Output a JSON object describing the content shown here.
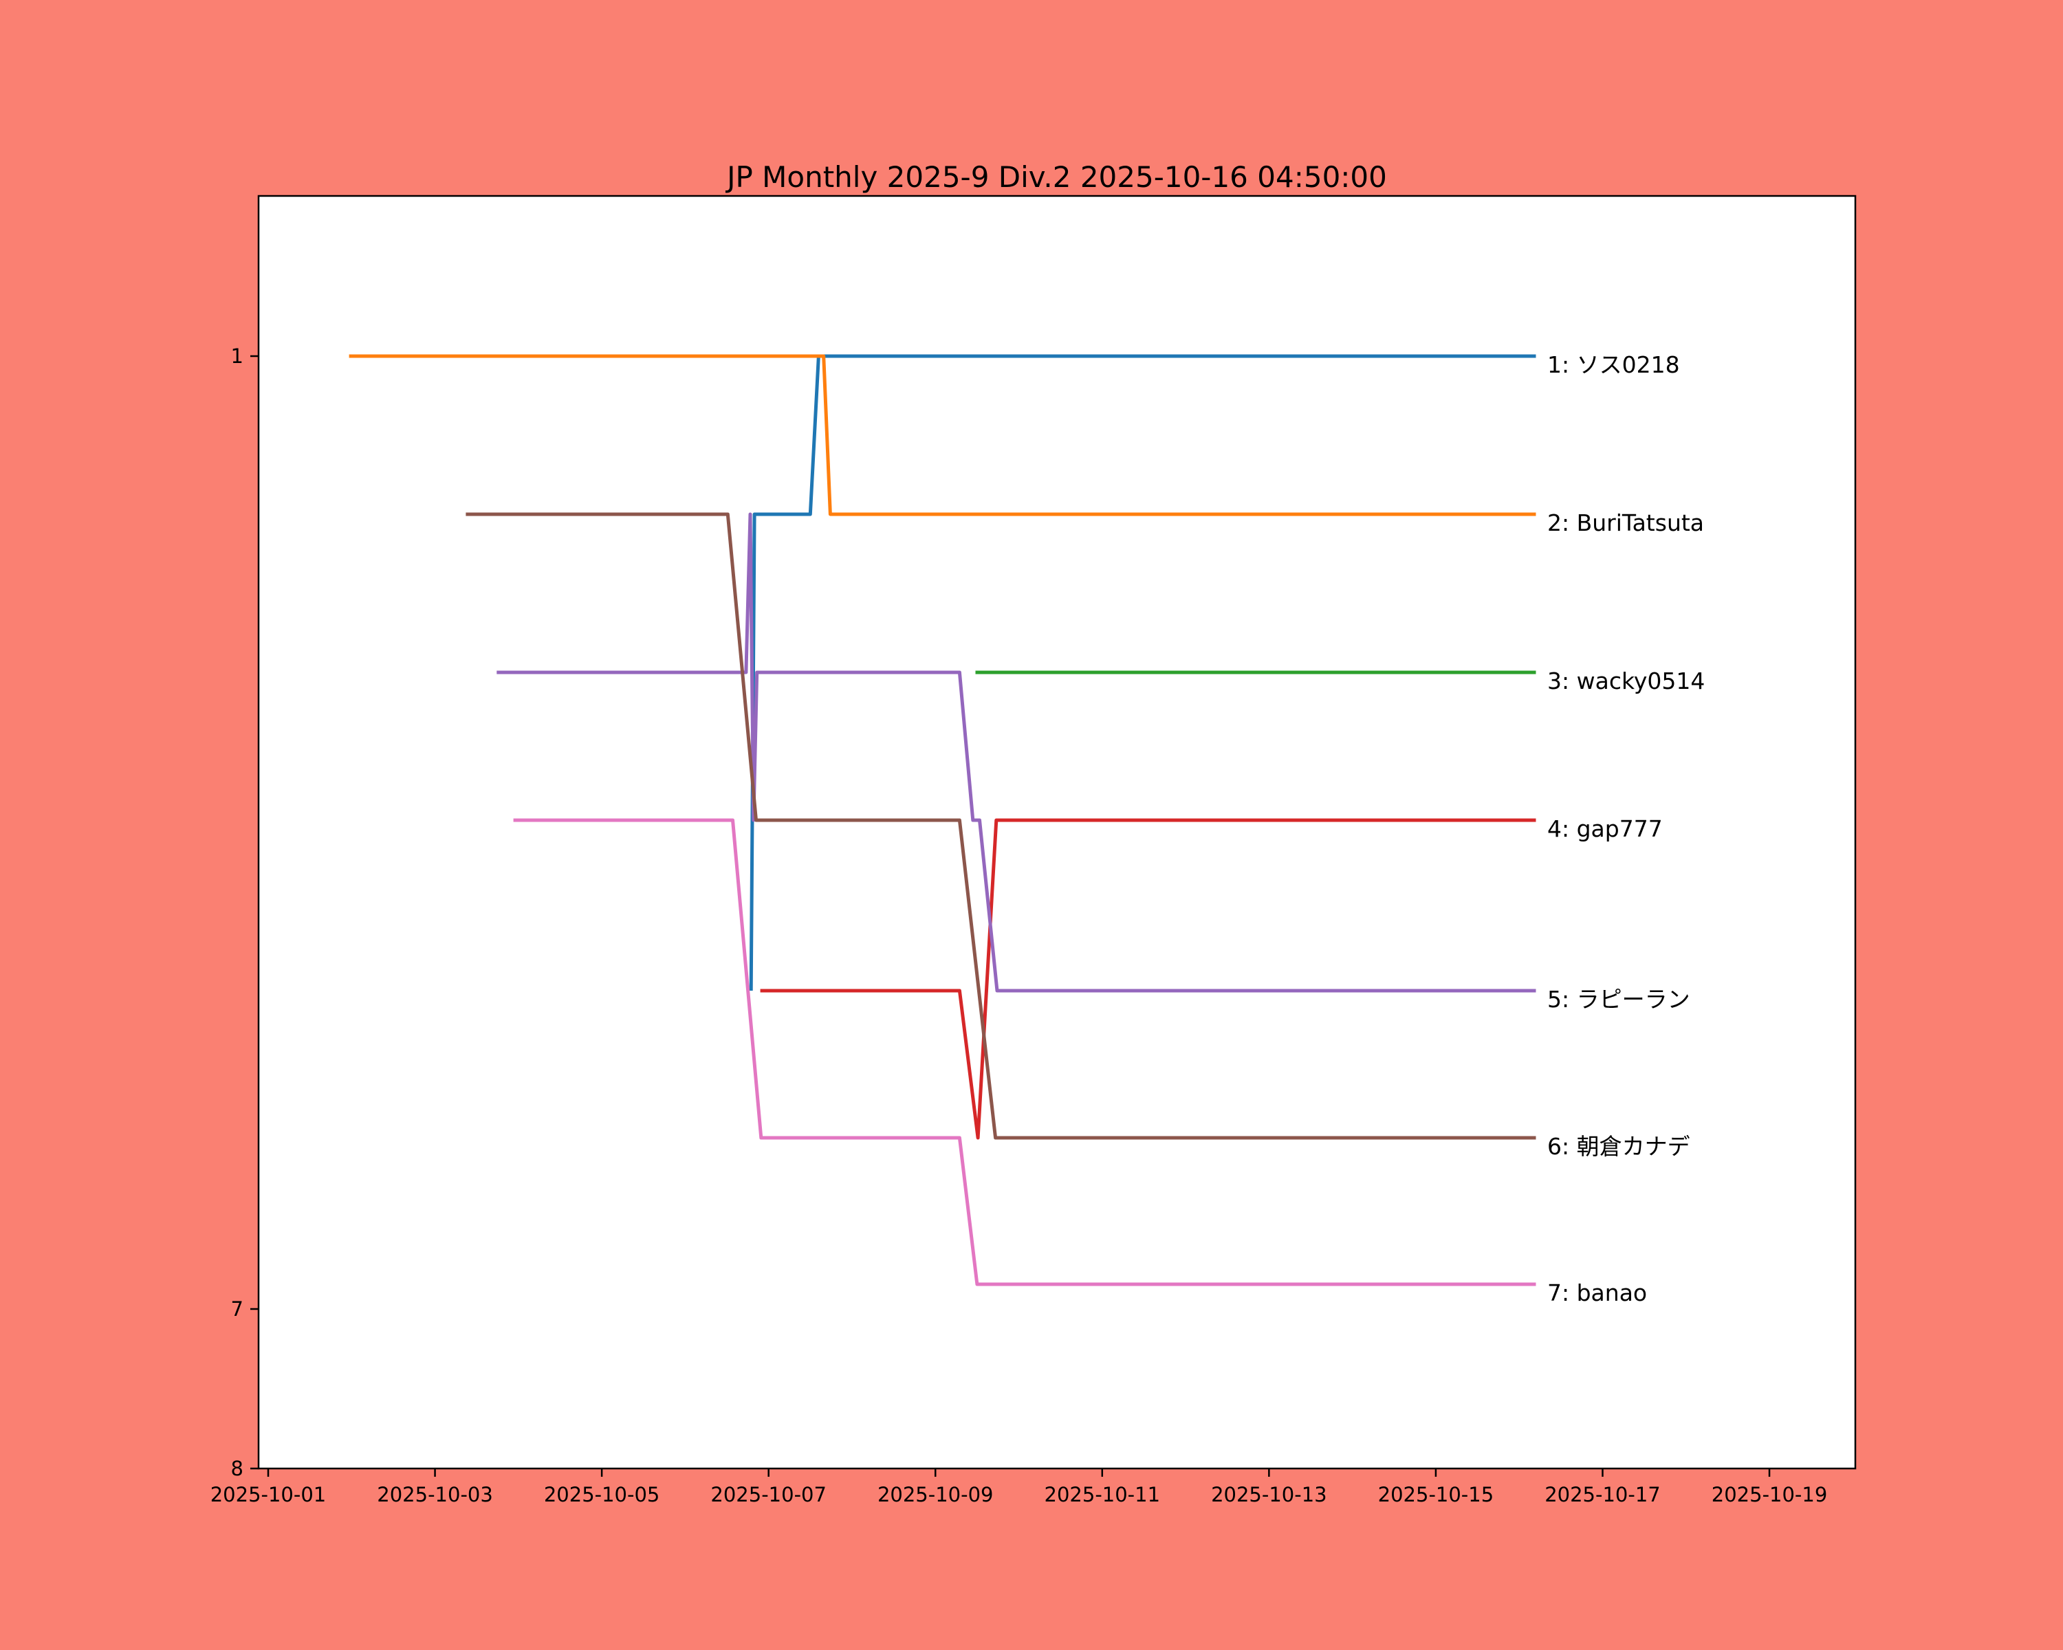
{
  "title": "JP Monthly 2025-9 Div.2 2025-10-16 04:50:00",
  "colors": {
    "figure_bg": "#fa8072",
    "plot_bg": "#ffffff",
    "spine": "#000000",
    "text": "#000000"
  },
  "chart_data": {
    "type": "line",
    "title": "JP Monthly 2025-9 Div.2 2025-10-16 04:50:00",
    "xlabel": "",
    "ylabel": "",
    "x_axis": {
      "unit": "date (October 2025, day-of-month as decimal)",
      "tick_labels": [
        "2025-10-01",
        "2025-10-03",
        "2025-10-05",
        "2025-10-07",
        "2025-10-09",
        "2025-10-11",
        "2025-10-13",
        "2025-10-15",
        "2025-10-17",
        "2025-10-19"
      ],
      "tick_days": [
        1,
        3,
        5,
        7,
        9,
        11,
        13,
        15,
        17,
        19
      ]
    },
    "y_axis": {
      "unit": "rank",
      "inverted": true,
      "tick_labels": [
        "1",
        "7",
        "8"
      ],
      "tick_ranks": [
        1,
        7,
        8
      ],
      "range": [
        0,
        8
      ],
      "grid": false
    },
    "legend_position": "labels-at-line-end-right",
    "series": [
      {
        "name": "ソス0218",
        "final_rank": 1,
        "label": "1: ソス0218",
        "color": "#1f77b4",
        "points": [
          [
            6.79,
            5
          ],
          [
            6.83,
            2
          ],
          [
            7.5,
            2
          ],
          [
            7.6,
            1
          ],
          [
            16.2,
            1
          ]
        ]
      },
      {
        "name": "BuriTatsuta",
        "final_rank": 2,
        "label": "2: BuriTatsuta",
        "color": "#ff7f0e",
        "points": [
          [
            1.97,
            1
          ],
          [
            7.66,
            1
          ],
          [
            7.74,
            2
          ],
          [
            16.2,
            2
          ]
        ]
      },
      {
        "name": "wacky0514",
        "final_rank": 3,
        "label": "3: wacky0514",
        "color": "#2ca02c",
        "points": [
          [
            9.48,
            3
          ],
          [
            16.2,
            3
          ]
        ]
      },
      {
        "name": "gap777",
        "final_rank": 4,
        "label": "4: gap777",
        "color": "#d62728",
        "points": [
          [
            6.9,
            5
          ],
          [
            9.29,
            5
          ],
          [
            9.51,
            6
          ],
          [
            9.73,
            4
          ],
          [
            16.2,
            4
          ]
        ]
      },
      {
        "name": "ラピーラン",
        "final_rank": 5,
        "label": "5: ラピーラン",
        "color": "#9467bd",
        "points": [
          [
            3.74,
            3
          ],
          [
            6.73,
            3
          ],
          [
            6.78,
            2
          ],
          [
            6.82,
            4
          ],
          [
            6.86,
            3
          ],
          [
            9.29,
            3
          ],
          [
            9.45,
            4
          ],
          [
            9.53,
            4
          ],
          [
            9.74,
            5
          ],
          [
            16.2,
            5
          ]
        ]
      },
      {
        "name": "朝倉カナデ",
        "final_rank": 6,
        "label": "6: 朝倉カナデ",
        "color": "#8c564b",
        "points": [
          [
            3.37,
            2
          ],
          [
            6.51,
            2
          ],
          [
            6.85,
            4
          ],
          [
            9.29,
            4
          ],
          [
            9.72,
            6
          ],
          [
            16.2,
            6
          ]
        ]
      },
      {
        "name": "banao",
        "final_rank": 7,
        "label": "7: banao",
        "color": "#e377c2",
        "points": [
          [
            3.94,
            4
          ],
          [
            6.57,
            4
          ],
          [
            6.91,
            6
          ],
          [
            9.29,
            6
          ],
          [
            9.5,
            7
          ],
          [
            16.2,
            7
          ]
        ]
      }
    ]
  }
}
